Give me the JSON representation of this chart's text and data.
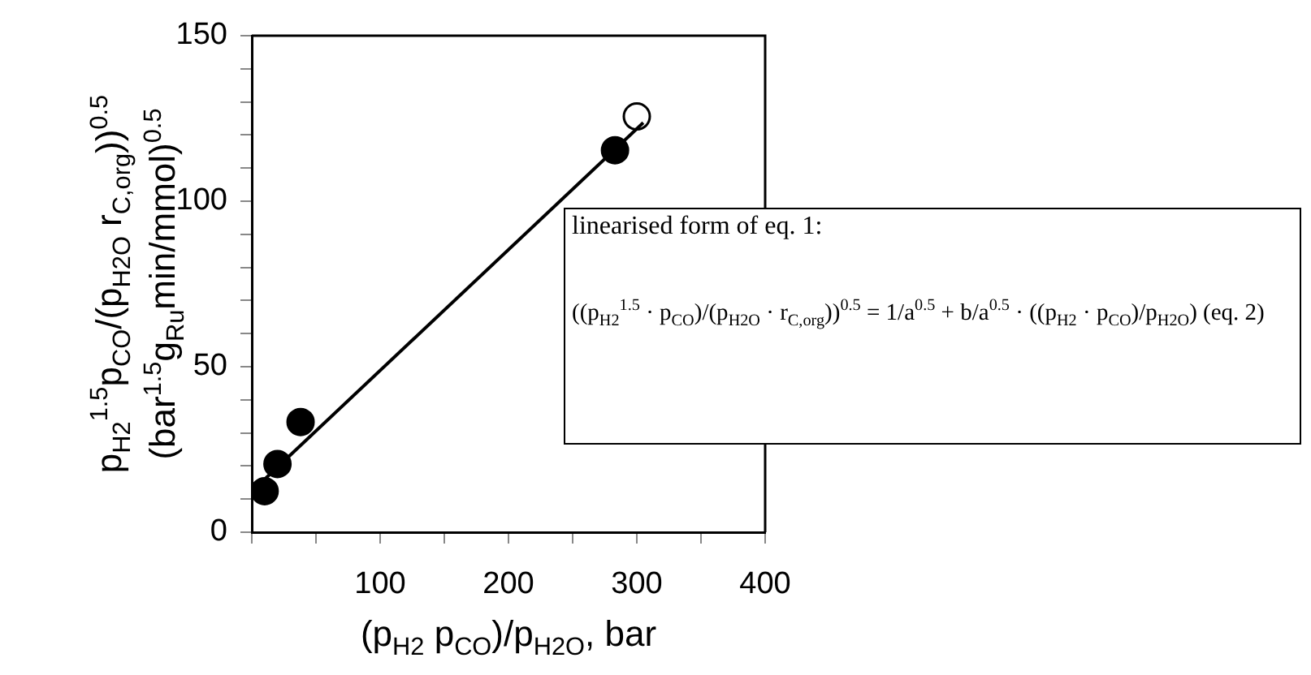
{
  "chart_data": {
    "type": "scatter",
    "xlabel": "(p$_{H2}$ p$_{CO}$)/p$_{H2O}$, bar",
    "ylabel": "p$_{H2}$$^{1.5}$p$_{CO}$/(p$_{H2O}$ r$_{C,org}$))$^{0.5}$\n(bar$^{1.5}$g$_{Ru}$min/mmol)$^{0.5}$",
    "xlim": [
      0,
      400
    ],
    "xticks": [
      {
        "value": 0,
        "label": null
      },
      {
        "value": 50,
        "label": null
      },
      100,
      {
        "value": 150,
        "label": null
      },
      200,
      {
        "value": 250,
        "label": null
      },
      300,
      {
        "value": 350,
        "label": null
      },
      400
    ],
    "ylim": [
      0,
      150
    ],
    "yticks": [
      0,
      {
        "value": 10,
        "label": null
      },
      {
        "value": 20,
        "label": null
      },
      {
        "value": 30,
        "label": null
      },
      {
        "value": 40,
        "label": null
      },
      50,
      {
        "value": 60,
        "label": null
      },
      {
        "value": 70,
        "label": null
      },
      {
        "value": 80,
        "label": null
      },
      {
        "value": 90,
        "label": null
      },
      100,
      {
        "value": 110,
        "label": null
      },
      {
        "value": 120,
        "label": null
      },
      {
        "value": 130,
        "label": null
      },
      {
        "value": 140,
        "label": null
      },
      150
    ],
    "grid": false,
    "legend": false,
    "marker": "circle",
    "annotations": [
      "linearised form of eq. 1:",
      "((p$_{H2}$$^{1.5}$ · p$_{CO}$)/(p$_{H2O}$ · r$_{C,org}$))$^{0.5}$ = 1/a$^{0.5}$ + b/a$^{0.5}$ · ((p$_{H2}$ · p$_{CO}$)/p$_{H2O}$) (eq. 2)"
    ],
    "series": [
      {
        "type": "line",
        "marker": "none",
        "color": "#000000",
        "x": [
          10,
          305
        ],
        "values": [
          16,
          123.7
        ]
      },
      {
        "color": "#000000",
        "x": [
          10,
          20,
          38,
          283
        ],
        "values": [
          12.4,
          20.6,
          33.3,
          115.4
        ]
      },
      {
        "color": "#ffffff",
        "x": [
          300
        ],
        "values": [
          125.6
        ]
      }
    ]
  }
}
